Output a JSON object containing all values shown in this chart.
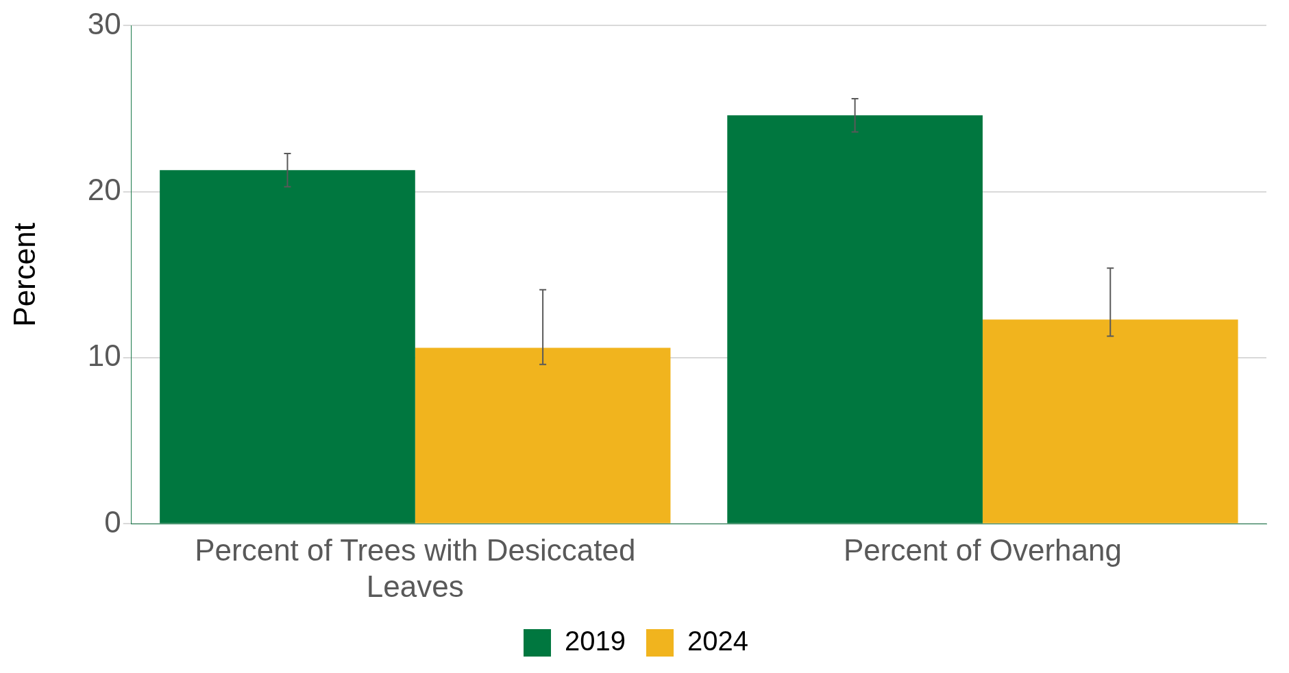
{
  "chart_data": {
    "type": "bar",
    "ylabel": "Percent",
    "categories": [
      "Percent of Trees with Desiccated Leaves",
      "Percent of Overhang"
    ],
    "series": [
      {
        "name": "2019",
        "color": "#00773f",
        "values": [
          21.3,
          24.6
        ],
        "errors": [
          1,
          1
        ]
      },
      {
        "name": "2024",
        "color": "#f1b41e",
        "values": [
          10.6,
          12.3
        ],
        "errors": [
          [
            9.6,
            14.1
          ],
          [
            11.3,
            15.4
          ]
        ]
      }
    ],
    "ylim": [
      0,
      30
    ],
    "yticks": [
      0,
      10,
      20,
      30
    ],
    "grid": "y",
    "legend": "bottom"
  }
}
